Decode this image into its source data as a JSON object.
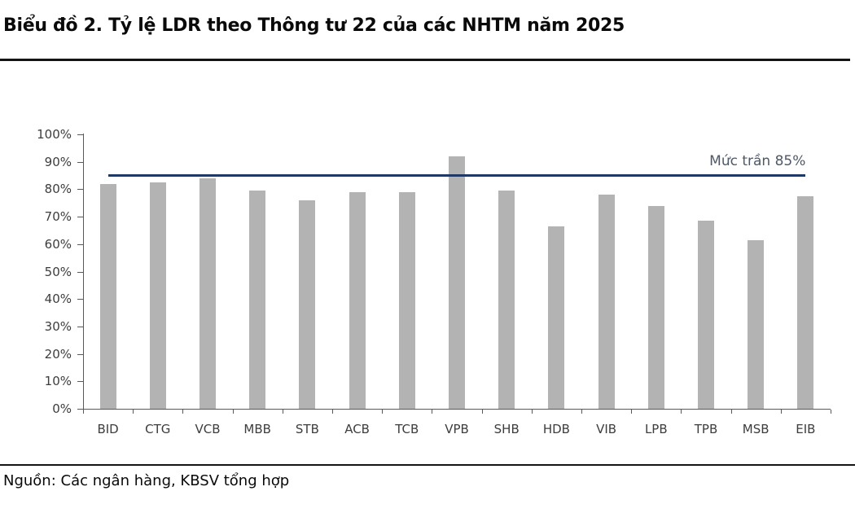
{
  "title": "Biểu đồ 2. Tỷ lệ LDR theo Thông tư 22 của các NHTM năm 2025",
  "source": "Nguồn: Các ngân hàng, KBSV tổng hợp",
  "chart_data": {
    "type": "bar",
    "title": "Biểu đồ 2. Tỷ lệ LDR theo Thông tư 22 của các NHTM năm 2025",
    "categories": [
      "BID",
      "CTG",
      "VCB",
      "MBB",
      "STB",
      "ACB",
      "TCB",
      "VPB",
      "SHB",
      "HDB",
      "VIB",
      "LPB",
      "TPB",
      "MSB",
      "EIB"
    ],
    "values": [
      82,
      82.5,
      84,
      79.5,
      76,
      79,
      79,
      92,
      79.5,
      66.5,
      78,
      74,
      68.5,
      61.5,
      77.5
    ],
    "xlabel": "",
    "ylabel": "",
    "ylim": [
      0,
      100
    ],
    "ytick_step": 10,
    "ytick_suffix": "%",
    "grid": false,
    "legend_position": "none",
    "reference_line": {
      "value": 85,
      "label": "Mức trần 85%"
    }
  },
  "colors": {
    "bar": "#b3b3b3",
    "reference_line": "#1f3864",
    "reference_label": "#4e5866",
    "axis": "#595959",
    "tick_label": "#3d3d3d",
    "title": "#0a0a0a",
    "rule": "#141414"
  }
}
